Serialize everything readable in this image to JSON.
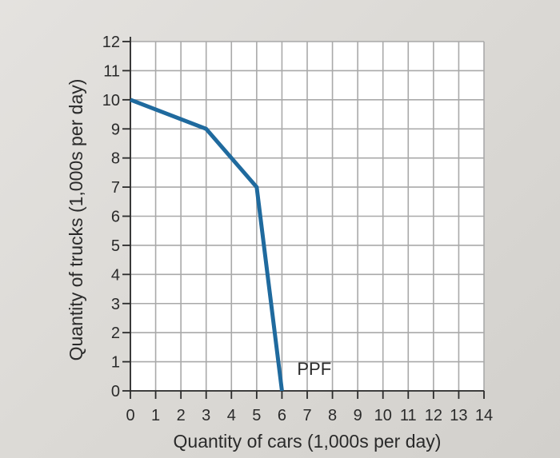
{
  "chart_data": {
    "type": "line",
    "xlabel": "Quantity of cars (1,000s per day)",
    "ylabel": "Quantity of trucks (1,000s per day)",
    "x_ticks": [
      "0",
      "1",
      "2",
      "3",
      "4",
      "5",
      "6",
      "7",
      "8",
      "9",
      "10",
      "11",
      "12",
      "13",
      "14"
    ],
    "y_ticks": [
      "0",
      "1",
      "2",
      "3",
      "4",
      "5",
      "6",
      "7",
      "8",
      "9",
      "10",
      "11",
      "12"
    ],
    "xlim": [
      0,
      14
    ],
    "ylim": [
      0,
      12
    ],
    "grid": true,
    "series": [
      {
        "name": "PPF",
        "color": "#1f6a9e",
        "x": [
          0,
          3,
          5,
          6
        ],
        "y": [
          10,
          9,
          7,
          0
        ]
      }
    ],
    "annotations": [
      {
        "text": "PPF",
        "x": 6.6,
        "y": 0.55
      }
    ]
  }
}
